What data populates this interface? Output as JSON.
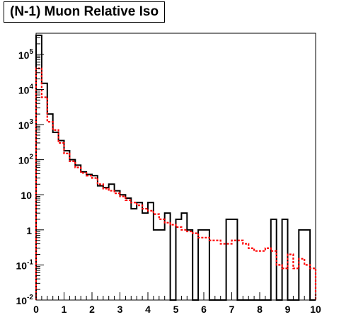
{
  "chart_data": {
    "type": "step",
    "title": "(N-1) Muon Relative Iso",
    "xlabel": "",
    "ylabel": "",
    "x_range": [
      0,
      10
    ],
    "y_range": [
      0.01,
      400000
    ],
    "y_scale": "log",
    "grid": false,
    "legend": "none",
    "bin_width": 0.2,
    "x_ticks": [
      "0",
      "1",
      "2",
      "3",
      "4",
      "5",
      "6",
      "7",
      "8",
      "9",
      "10"
    ],
    "y_ticks": [
      {
        "value": 0.01,
        "base": "10",
        "exp": "-2"
      },
      {
        "value": 0.1,
        "base": "10",
        "exp": "-1"
      },
      {
        "value": 1,
        "base": "1",
        "exp": ""
      },
      {
        "value": 10,
        "base": "10",
        "exp": ""
      },
      {
        "value": 100,
        "base": "10",
        "exp": "2"
      },
      {
        "value": 1000,
        "base": "10",
        "exp": "3"
      },
      {
        "value": 10000,
        "base": "10",
        "exp": "4"
      },
      {
        "value": 100000,
        "base": "10",
        "exp": "5"
      }
    ],
    "series": [
      {
        "color": "#000000",
        "style": "solid",
        "values": [
          350000,
          15000,
          2000,
          600,
          350,
          180,
          100,
          70,
          45,
          38,
          35,
          18,
          16,
          20,
          13,
          10,
          8,
          4,
          6,
          3,
          6,
          1,
          1,
          3,
          0,
          2,
          3,
          1,
          0,
          1,
          1,
          0,
          0,
          0,
          2,
          2,
          0,
          0,
          0,
          0,
          0,
          0,
          2,
          0,
          2,
          0,
          0,
          1,
          1,
          0
        ]
      },
      {
        "color": "#ff0000",
        "style": "dashed",
        "values": [
          40000,
          6000,
          1200,
          700,
          300,
          150,
          90,
          60,
          42,
          35,
          30,
          20,
          15,
          13,
          11,
          9,
          7,
          6,
          5,
          4,
          3.5,
          2.8,
          2.0,
          1.6,
          1.4,
          1.2,
          1.0,
          0.9,
          0.8,
          0.6,
          0.6,
          0.5,
          0.5,
          0.4,
          0.4,
          0.5,
          0.5,
          0.4,
          0.3,
          0.25,
          0.25,
          0.3,
          0.25,
          0.1,
          0.08,
          0.2,
          0.08,
          0.15,
          0.1,
          0.08
        ]
      }
    ]
  }
}
